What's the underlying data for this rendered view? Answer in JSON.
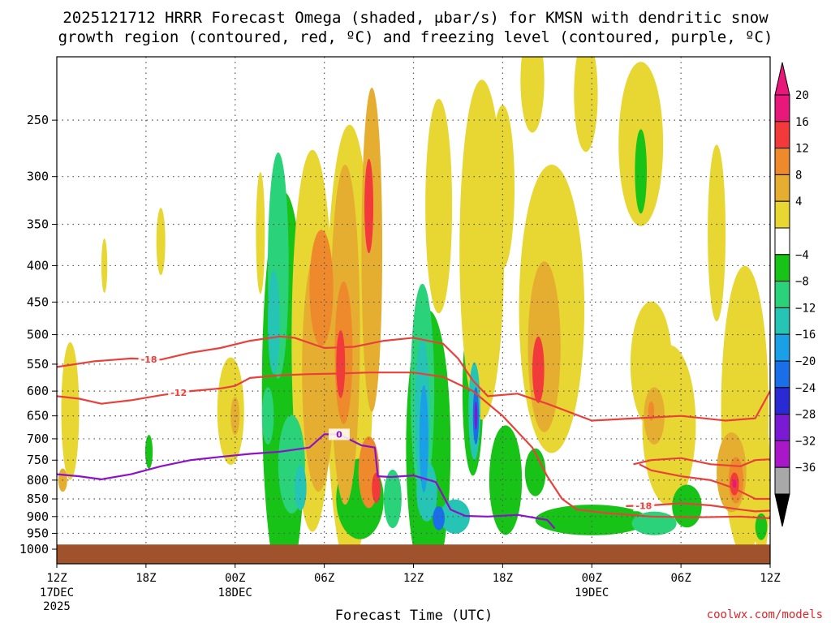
{
  "chart_data": {
    "type": "time-height cross section",
    "title_line1": "2025121712 HRRR Forecast Omega (shaded, μbar/s) for KMSN with dendritic snow",
    "title_line2": "growth region (contoured, red, ºC) and freezing level (contoured, purple, ºC)",
    "xlabel": "Forecast Time (UTC)",
    "credit": "coolwx.com/models",
    "x_hours_range": [
      0,
      48
    ],
    "y_pressure_range": [
      1000,
      200
    ],
    "y_ticks": [
      250,
      300,
      350,
      400,
      450,
      500,
      550,
      600,
      650,
      700,
      750,
      800,
      850,
      900,
      950,
      1000
    ],
    "x_ticks": [
      {
        "hour": 0,
        "label": "12Z",
        "sub": "17DEC",
        "sub2": "2025"
      },
      {
        "hour": 6,
        "label": "18Z",
        "sub": "",
        "sub2": ""
      },
      {
        "hour": 12,
        "label": "00Z",
        "sub": "18DEC",
        "sub2": ""
      },
      {
        "hour": 18,
        "label": "06Z",
        "sub": "",
        "sub2": ""
      },
      {
        "hour": 24,
        "label": "12Z",
        "sub": "",
        "sub2": ""
      },
      {
        "hour": 30,
        "label": "18Z",
        "sub": "",
        "sub2": ""
      },
      {
        "hour": 36,
        "label": "00Z",
        "sub": "19DEC",
        "sub2": ""
      },
      {
        "hour": 42,
        "label": "06Z",
        "sub": "",
        "sub2": ""
      },
      {
        "hour": 48,
        "label": "12Z",
        "sub": "",
        "sub2": ""
      }
    ],
    "colorbar": [
      {
        "label": "20",
        "color": "#e8187a"
      },
      {
        "label": "16",
        "color": "#f23a3a"
      },
      {
        "label": "12",
        "color": "#ee8a2c"
      },
      {
        "label": "8",
        "color": "#e6ae30"
      },
      {
        "label": "4",
        "color": "#e8d632"
      },
      {
        "label": "",
        "color": "#ffffff"
      },
      {
        "label": "−4",
        "color": "#18c318"
      },
      {
        "label": "−8",
        "color": "#2ad27a"
      },
      {
        "label": "−12",
        "color": "#26c4b4"
      },
      {
        "label": "−16",
        "color": "#1aa0e6"
      },
      {
        "label": "−20",
        "color": "#1a6ee8"
      },
      {
        "label": "−24",
        "color": "#2a2ad2"
      },
      {
        "label": "−28",
        "color": "#7a1ad2"
      },
      {
        "label": "−32",
        "color": "#a818c8"
      },
      {
        "label": "−36",
        "color": "#a8a8a8"
      },
      {
        "label": "",
        "color": "#000000"
      }
    ],
    "ground_color": "#a0522d",
    "omega_blobs": [
      {
        "h": 0.9,
        "p": 640,
        "rh": 0.6,
        "rp": 140,
        "level": 4
      },
      {
        "h": 0.4,
        "p": 800,
        "rh": 0.3,
        "rp": 30,
        "level": 8
      },
      {
        "h": 3.2,
        "p": 400,
        "rh": 0.2,
        "rp": 35,
        "level": 4
      },
      {
        "h": 6.2,
        "p": 730,
        "rh": 0.25,
        "rp": 40,
        "level": -4
      },
      {
        "h": 7.0,
        "p": 370,
        "rh": 0.3,
        "rp": 40,
        "level": 4
      },
      {
        "h": 11.7,
        "p": 640,
        "rh": 0.9,
        "rp": 110,
        "level": 4
      },
      {
        "h": 12.0,
        "p": 650,
        "rh": 0.3,
        "rp": 40,
        "level": 8
      },
      {
        "h": 13.7,
        "p": 360,
        "rh": 0.3,
        "rp": 70,
        "level": 4
      },
      {
        "h": 15.3,
        "p": 600,
        "rh": 1.5,
        "rp": 340,
        "level": -4
      },
      {
        "h": 14.9,
        "p": 400,
        "rh": 0.7,
        "rp": 140,
        "level": -8
      },
      {
        "h": 14.6,
        "p": 480,
        "rh": 0.4,
        "rp": 80,
        "level": -12
      },
      {
        "h": 14.2,
        "p": 650,
        "rh": 0.4,
        "rp": 60,
        "level": -8
      },
      {
        "h": 15.8,
        "p": 760,
        "rh": 0.9,
        "rp": 120,
        "level": -8
      },
      {
        "h": 16.4,
        "p": 820,
        "rh": 0.4,
        "rp": 60,
        "level": -12
      },
      {
        "h": 17.2,
        "p": 510,
        "rh": 1.4,
        "rp": 280,
        "level": 4
      },
      {
        "h": 17.6,
        "p": 560,
        "rh": 1.1,
        "rp": 210,
        "level": 8
      },
      {
        "h": 17.8,
        "p": 430,
        "rh": 0.8,
        "rp": 80,
        "level": 12
      },
      {
        "h": 19.7,
        "p": 520,
        "rh": 1.6,
        "rp": 320,
        "level": 4
      },
      {
        "h": 19.4,
        "p": 500,
        "rh": 1.0,
        "rp": 250,
        "level": 8
      },
      {
        "h": 19.3,
        "p": 530,
        "rh": 0.6,
        "rp": 120,
        "level": 12
      },
      {
        "h": 19.1,
        "p": 550,
        "rh": 0.3,
        "rp": 60,
        "level": 16
      },
      {
        "h": 21.2,
        "p": 380,
        "rh": 0.7,
        "rp": 190,
        "level": 8
      },
      {
        "h": 21.0,
        "p": 330,
        "rh": 0.3,
        "rp": 50,
        "level": 16
      },
      {
        "h": 21.0,
        "p": 780,
        "rh": 0.7,
        "rp": 90,
        "level": 12
      },
      {
        "h": 21.5,
        "p": 820,
        "rh": 0.3,
        "rp": 40,
        "level": 16
      },
      {
        "h": 20.4,
        "p": 850,
        "rh": 1.6,
        "rp": 110,
        "level": -4
      },
      {
        "h": 22.6,
        "p": 850,
        "rh": 0.6,
        "rp": 80,
        "level": -8
      },
      {
        "h": 25.0,
        "p": 720,
        "rh": 1.5,
        "rp": 300,
        "level": -4
      },
      {
        "h": 24.6,
        "p": 600,
        "rh": 0.8,
        "rp": 200,
        "level": -8
      },
      {
        "h": 24.6,
        "p": 650,
        "rh": 0.5,
        "rp": 160,
        "level": -12
      },
      {
        "h": 24.7,
        "p": 700,
        "rh": 0.3,
        "rp": 120,
        "level": -16
      },
      {
        "h": 24.9,
        "p": 830,
        "rh": 0.7,
        "rp": 80,
        "level": -12
      },
      {
        "h": 25.7,
        "p": 905,
        "rh": 0.4,
        "rp": 35,
        "level": -20
      },
      {
        "h": 26.8,
        "p": 900,
        "rh": 1.0,
        "rp": 50,
        "level": -12
      },
      {
        "h": 25.7,
        "p": 330,
        "rh": 0.9,
        "rp": 110,
        "level": 4
      },
      {
        "h": 28.0,
        "p": 600,
        "rh": 0.7,
        "rp": 160,
        "level": -4
      },
      {
        "h": 28.1,
        "p": 640,
        "rh": 0.4,
        "rp": 100,
        "level": -12
      },
      {
        "h": 28.2,
        "p": 650,
        "rh": 0.2,
        "rp": 60,
        "level": -20
      },
      {
        "h": 28.2,
        "p": 650,
        "rh": 0.1,
        "rp": 30,
        "level": -28
      },
      {
        "h": 28.6,
        "p": 380,
        "rh": 1.5,
        "rp": 220,
        "level": 4
      },
      {
        "h": 30.0,
        "p": 310,
        "rh": 0.8,
        "rp": 80,
        "level": 4
      },
      {
        "h": 30.2,
        "p": 800,
        "rh": 1.1,
        "rp": 140,
        "level": -4
      },
      {
        "h": 33.3,
        "p": 460,
        "rh": 2.2,
        "rp": 200,
        "level": 4
      },
      {
        "h": 32.8,
        "p": 520,
        "rh": 1.1,
        "rp": 140,
        "level": 8
      },
      {
        "h": 32.4,
        "p": 560,
        "rh": 0.4,
        "rp": 60,
        "level": 16
      },
      {
        "h": 32.2,
        "p": 780,
        "rh": 0.7,
        "rp": 60,
        "level": -4
      },
      {
        "h": 32.0,
        "p": 160,
        "rh": 0.8,
        "rp": 60,
        "level": -4
      },
      {
        "h": 32.0,
        "p": 220,
        "rh": 0.8,
        "rp": 60,
        "level": 4
      },
      {
        "h": 35.6,
        "p": 230,
        "rh": 0.8,
        "rp": 60,
        "level": 4
      },
      {
        "h": 36.0,
        "p": 910,
        "rh": 3.8,
        "rp": 45,
        "level": -4
      },
      {
        "h": 39.3,
        "p": 270,
        "rh": 1.5,
        "rp": 70,
        "level": 4
      },
      {
        "h": 39.3,
        "p": 295,
        "rh": 0.4,
        "rp": 40,
        "level": -4
      },
      {
        "h": 40.0,
        "p": 550,
        "rh": 1.4,
        "rp": 110,
        "level": 4
      },
      {
        "h": 41.2,
        "p": 670,
        "rh": 1.8,
        "rp": 170,
        "level": 4
      },
      {
        "h": 40.2,
        "p": 650,
        "rh": 0.7,
        "rp": 60,
        "level": 8
      },
      {
        "h": 40.0,
        "p": 640,
        "rh": 0.2,
        "rp": 20,
        "level": 12
      },
      {
        "h": 42.4,
        "p": 870,
        "rh": 1.0,
        "rp": 60,
        "level": -4
      },
      {
        "h": 40.2,
        "p": 920,
        "rh": 1.5,
        "rp": 35,
        "level": -8
      },
      {
        "h": 44.4,
        "p": 360,
        "rh": 0.6,
        "rp": 100,
        "level": 4
      },
      {
        "h": 46.3,
        "p": 640,
        "rh": 1.6,
        "rp": 280,
        "level": 4
      },
      {
        "h": 45.4,
        "p": 780,
        "rh": 1.0,
        "rp": 100,
        "level": 8
      },
      {
        "h": 45.7,
        "p": 800,
        "rh": 0.5,
        "rp": 60,
        "level": 12
      },
      {
        "h": 45.6,
        "p": 810,
        "rh": 0.3,
        "rp": 30,
        "level": 16
      },
      {
        "h": 45.6,
        "p": 810,
        "rh": 0.12,
        "rp": 12,
        "level": 20
      },
      {
        "h": 47.4,
        "p": 800,
        "rh": 0.6,
        "rp": 200,
        "level": 4
      },
      {
        "h": 47.4,
        "p": 930,
        "rh": 0.4,
        "rp": 40,
        "level": -4
      }
    ],
    "isotherms": [
      {
        "value": -18,
        "color": "#e8413c",
        "label_hour": 6.2,
        "points": [
          [
            0,
            555
          ],
          [
            2.5,
            545
          ],
          [
            5,
            540
          ],
          [
            7,
            542
          ],
          [
            9,
            530
          ],
          [
            11,
            522
          ],
          [
            13,
            510
          ],
          [
            15,
            503
          ],
          [
            16,
            505
          ],
          [
            18,
            522
          ],
          [
            20,
            520
          ],
          [
            22,
            510
          ],
          [
            24,
            505
          ],
          [
            26,
            515
          ],
          [
            27,
            540
          ],
          [
            28,
            580
          ],
          [
            29,
            610
          ],
          [
            31,
            605
          ],
          [
            33,
            625
          ],
          [
            36,
            660
          ],
          [
            39,
            655
          ],
          [
            42,
            650
          ],
          [
            45,
            660
          ],
          [
            47,
            655
          ],
          [
            48,
            600
          ]
        ]
      },
      {
        "value": -12,
        "color": "#e8413c",
        "label_hour": 8.2,
        "points": [
          [
            0,
            610
          ],
          [
            1.5,
            615
          ],
          [
            3,
            625
          ],
          [
            5,
            618
          ],
          [
            7,
            608
          ],
          [
            9,
            600
          ],
          [
            11,
            595
          ],
          [
            12,
            590
          ],
          [
            13,
            575
          ],
          [
            15,
            570
          ],
          [
            17,
            568
          ],
          [
            19,
            567
          ],
          [
            21,
            565
          ],
          [
            24,
            565
          ],
          [
            26,
            573
          ],
          [
            28,
            600
          ],
          [
            30,
            650
          ],
          [
            32,
            720
          ],
          [
            33,
            790
          ],
          [
            34,
            850
          ],
          [
            35,
            880
          ],
          [
            37,
            890
          ],
          [
            40,
            900
          ],
          [
            43,
            902
          ],
          [
            46,
            900
          ],
          [
            48,
            905
          ]
        ]
      },
      {
        "value": -18,
        "color": "#e8413c",
        "label_hour": 39.5,
        "points": [
          [
            38.3,
            870
          ],
          [
            40,
            868
          ],
          [
            42,
            862
          ],
          [
            44,
            868
          ],
          [
            46,
            880
          ],
          [
            47,
            885
          ],
          [
            48,
            883
          ]
        ]
      },
      {
        "value": -12,
        "color": "#e8413c",
        "label_hour": null,
        "points": [
          [
            39.2,
            760
          ],
          [
            40,
            775
          ],
          [
            42,
            790
          ],
          [
            44,
            800
          ],
          [
            45.5,
            820
          ],
          [
            47,
            850
          ],
          [
            48,
            850
          ]
        ]
      },
      {
        "value": -12,
        "color": "#e8413c",
        "label_hour": null,
        "points": [
          [
            38.8,
            760
          ],
          [
            40,
            750
          ],
          [
            42,
            745
          ],
          [
            44,
            760
          ],
          [
            46,
            765
          ],
          [
            47,
            750
          ],
          [
            48,
            748
          ]
        ]
      }
    ],
    "freezing_level": {
      "value": 0,
      "color": "#8b12c8",
      "label_hour": 19.0,
      "points": [
        [
          0,
          785
        ],
        [
          1.5,
          790
        ],
        [
          3,
          798
        ],
        [
          5,
          785
        ],
        [
          7,
          765
        ],
        [
          9,
          750
        ],
        [
          11,
          742
        ],
        [
          13,
          735
        ],
        [
          15,
          730
        ],
        [
          17,
          720
        ],
        [
          18,
          690
        ],
        [
          19,
          690
        ],
        [
          20.5,
          715
        ],
        [
          21.4,
          720
        ],
        [
          21.6,
          790
        ],
        [
          22.5,
          792
        ],
        [
          24,
          788
        ],
        [
          25.5,
          805
        ],
        [
          26.5,
          880
        ],
        [
          27.5,
          898
        ],
        [
          29,
          900
        ],
        [
          31,
          895
        ],
        [
          33,
          910
        ],
        [
          33.5,
          935
        ]
      ]
    },
    "label_dendritic_upper": "-18",
    "label_dendritic_lower": "-12",
    "label_freezing": "0"
  }
}
